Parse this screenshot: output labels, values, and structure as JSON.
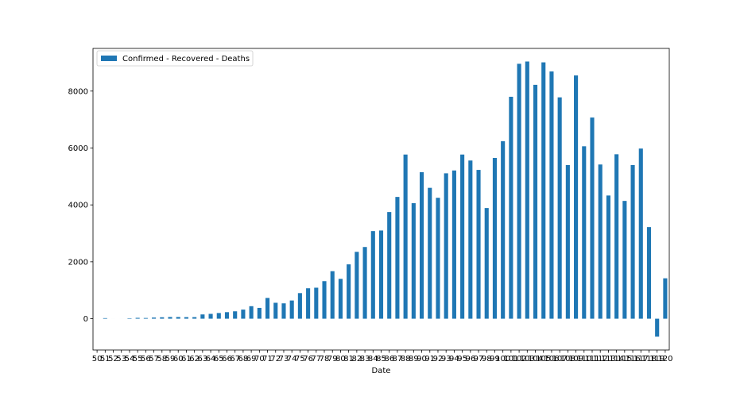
{
  "chart_data": {
    "type": "bar",
    "xlabel": "Date",
    "ylabel": "",
    "ylim": [
      -1100,
      9500
    ],
    "yticks": [
      0,
      2000,
      4000,
      6000,
      8000
    ],
    "bar_color": "#1f77b4",
    "legend": {
      "entries": [
        "Confirmed - Recovered - Deaths"
      ],
      "placement": "top-left"
    },
    "categories": [
      "50",
      "51",
      "52",
      "53",
      "54",
      "55",
      "56",
      "57",
      "58",
      "59",
      "60",
      "61",
      "62",
      "63",
      "64",
      "65",
      "66",
      "67",
      "68",
      "69",
      "70",
      "71",
      "72",
      "73",
      "74",
      "75",
      "76",
      "77",
      "78",
      "79",
      "80",
      "81",
      "82",
      "83",
      "84",
      "85",
      "86",
      "87",
      "88",
      "89",
      "90",
      "91",
      "92",
      "93",
      "94",
      "95",
      "96",
      "97",
      "98",
      "99",
      "100",
      "101",
      "102",
      "103",
      "104",
      "105",
      "106",
      "107",
      "108",
      "109",
      "110",
      "111",
      "112",
      "113",
      "114",
      "115",
      "116",
      "117",
      "118",
      "119",
      "120"
    ],
    "series": [
      {
        "name": "Confirmed - Recovered - Deaths",
        "values": [
          0,
          20,
          0,
          0,
          15,
          30,
          25,
          40,
          50,
          60,
          60,
          55,
          55,
          150,
          170,
          200,
          230,
          260,
          320,
          440,
          380,
          730,
          560,
          540,
          640,
          900,
          1070,
          1090,
          1320,
          1670,
          1400,
          1910,
          2350,
          2520,
          3080,
          3100,
          3750,
          4280,
          5770,
          4060,
          5150,
          4600,
          4250,
          5110,
          5210,
          5770,
          5560,
          5230,
          3890,
          5650,
          6240,
          7800,
          8960,
          9040,
          8220,
          9010,
          8690,
          7780,
          5400,
          8550,
          6060,
          7070,
          5420,
          4330,
          5780,
          4140,
          5400,
          5980,
          3220,
          -630,
          1420
        ]
      }
    ]
  }
}
